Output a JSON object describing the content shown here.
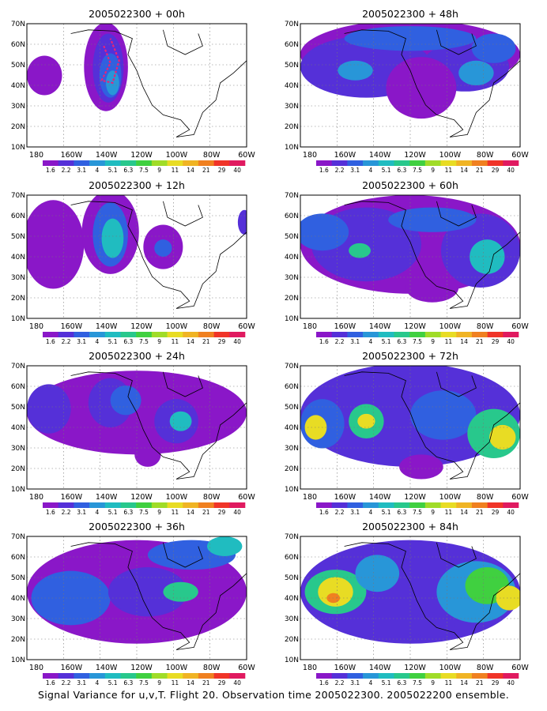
{
  "panels": [
    {
      "title": "2005022300 + 00h"
    },
    {
      "title": "2005022300 + 48h"
    },
    {
      "title": "2005022300 + 12h"
    },
    {
      "title": "2005022300 + 60h"
    },
    {
      "title": "2005022300 + 24h"
    },
    {
      "title": "2005022300 + 72h"
    },
    {
      "title": "2005022300 + 36h"
    },
    {
      "title": "2005022300 + 84h"
    }
  ],
  "axes": {
    "lat_labels": [
      "70N",
      "60N",
      "50N",
      "40N",
      "30N",
      "20N",
      "10N"
    ],
    "lon_labels": [
      "180",
      "160W",
      "140W",
      "120W",
      "100W",
      "80W",
      "60W"
    ]
  },
  "colorbar": {
    "labels": [
      "1.6",
      "2.2",
      "3.1",
      "4",
      "5.1",
      "6.3",
      "7.5",
      "9",
      "11",
      "14",
      "21",
      "29",
      "40"
    ],
    "colors": [
      "#8a17c8",
      "#5530d8",
      "#3060e0",
      "#2896d8",
      "#20bcc0",
      "#28c88c",
      "#40d040",
      "#a0dc28",
      "#e8dc24",
      "#f0b424",
      "#f08020",
      "#f03428",
      "#e01a60"
    ]
  },
  "footer": "Signal Variance for u,v,T. Flight 20. Observation time 2005022300. 2005022200 ensemble."
}
